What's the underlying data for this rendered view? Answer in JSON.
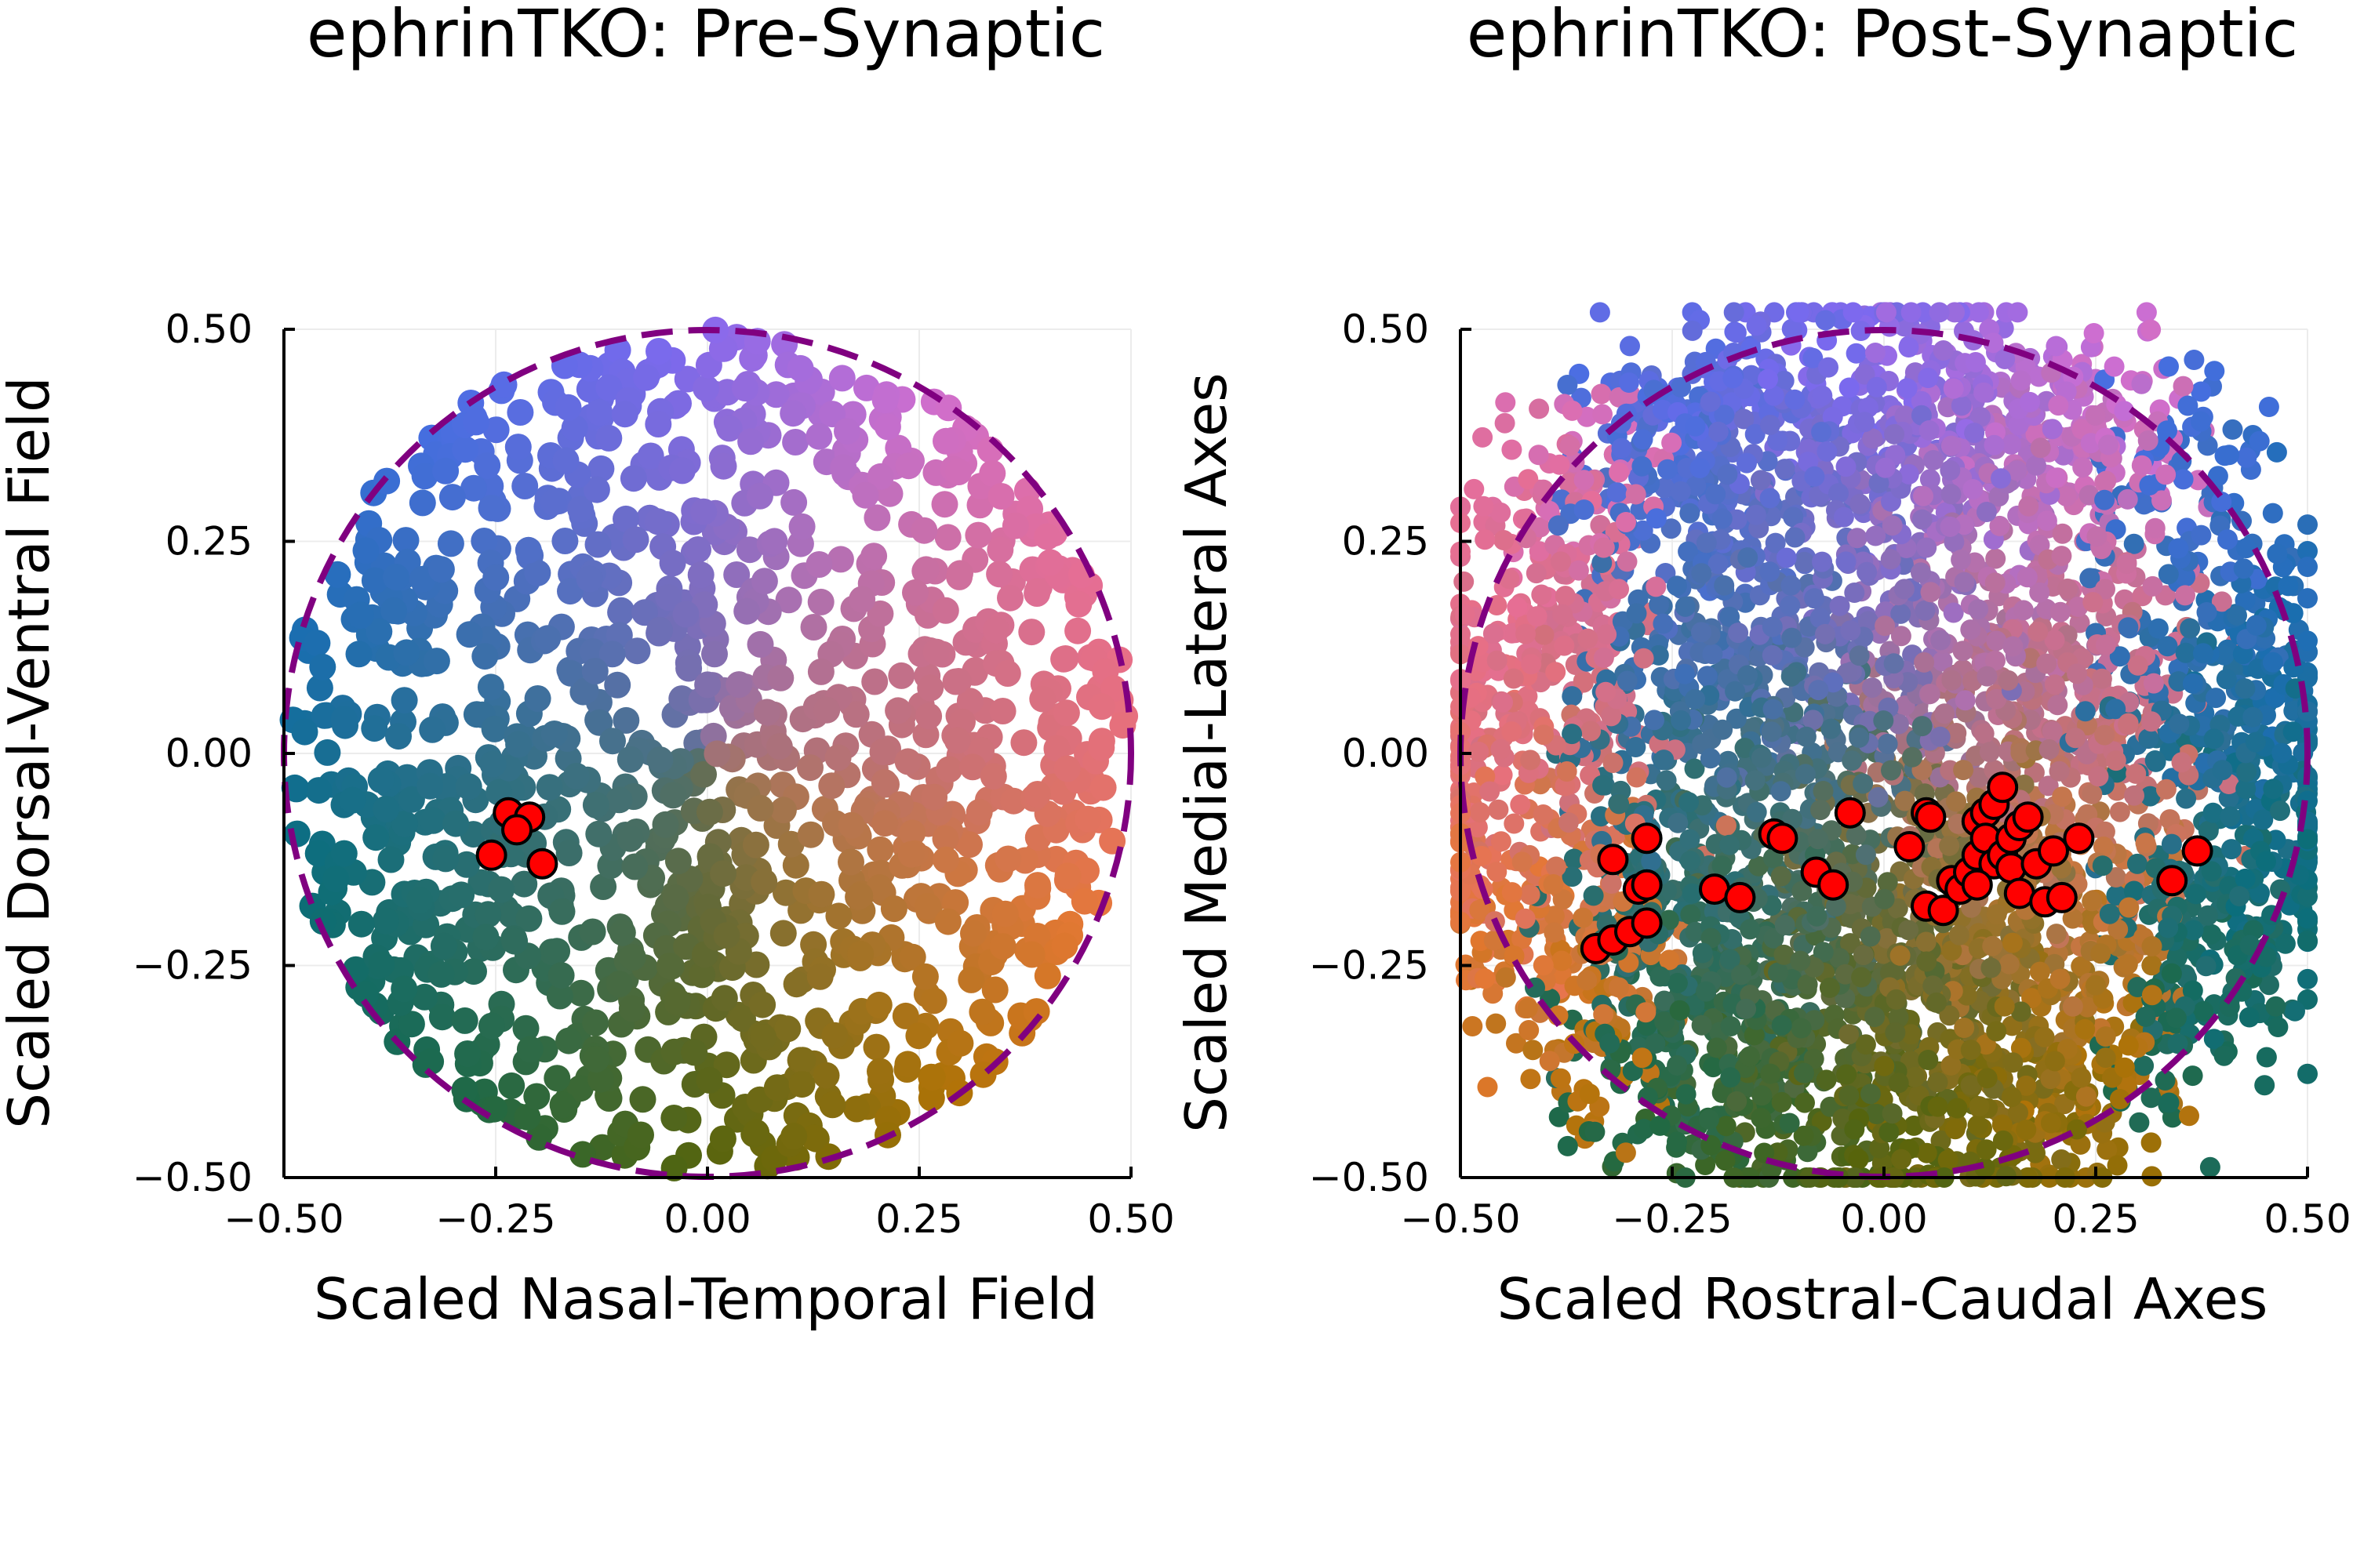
{
  "chart_data": [
    {
      "type": "scatter",
      "title": "ephrinTKO: Pre-Synaptic",
      "xlabel": "Scaled Nasal-Temporal Field",
      "ylabel": "Scaled Dorsal-Ventral Field",
      "xlim": [
        -0.5,
        0.5
      ],
      "ylim": [
        -0.5,
        0.5
      ],
      "xticks": [
        -0.5,
        -0.25,
        0.0,
        0.25,
        0.5
      ],
      "yticks": [
        -0.5,
        -0.25,
        0.0,
        0.25,
        0.5
      ],
      "xtick_labels": [
        "−0.50",
        "−0.25",
        "0.00",
        "0.25",
        "0.50"
      ],
      "ytick_labels": [
        "−0.50",
        "−0.25",
        "0.00",
        "0.25",
        "0.50"
      ],
      "grid": true,
      "legend": "none",
      "guide_circle": {
        "center": [
          0,
          0
        ],
        "radius": 0.5,
        "color": "#800080",
        "style": "dashed"
      },
      "background_points": {
        "count": 1200,
        "coloring": "color wheel by angle",
        "distribution": "uniform within unit-radius-0.5 disk"
      },
      "highlight_color": "#ff0000",
      "highlight_points": [
        {
          "x": -0.235,
          "y": -0.07
        },
        {
          "x": -0.21,
          "y": -0.075
        },
        {
          "x": -0.225,
          "y": -0.09
        },
        {
          "x": -0.255,
          "y": -0.12
        },
        {
          "x": -0.195,
          "y": -0.13
        }
      ]
    },
    {
      "type": "scatter",
      "title": "ephrinTKO: Post-Synaptic",
      "xlabel": "Scaled Rostral-Caudal Axes",
      "ylabel": "Scaled Medial-Lateral Axes",
      "xlim": [
        -0.5,
        0.5
      ],
      "ylim": [
        -0.5,
        0.5
      ],
      "xticks": [
        -0.5,
        -0.25,
        0.0,
        0.25,
        0.5
      ],
      "yticks": [
        -0.5,
        -0.25,
        0.0,
        0.25,
        0.5
      ],
      "xtick_labels": [
        "−0.50",
        "−0.25",
        "0.00",
        "0.25",
        "0.50"
      ],
      "ytick_labels": [
        "−0.50",
        "−0.25",
        "0.00",
        "0.25",
        "0.50"
      ],
      "grid": true,
      "legend": "none",
      "guide_circle": {
        "center": [
          0,
          0
        ],
        "radius": 0.5,
        "color": "#800080",
        "style": "dashed"
      },
      "background_points": {
        "count": 4200,
        "coloring": "color wheel by pre-synaptic angle",
        "distribution": "dense, overlapping, slightly beyond circle"
      },
      "highlight_color": "#ff0000",
      "highlight_points": [
        {
          "x": -0.34,
          "y": -0.23
        },
        {
          "x": -0.32,
          "y": -0.22
        },
        {
          "x": -0.3,
          "y": -0.21
        },
        {
          "x": -0.28,
          "y": -0.2
        },
        {
          "x": -0.29,
          "y": -0.16
        },
        {
          "x": -0.28,
          "y": -0.155
        },
        {
          "x": -0.32,
          "y": -0.125
        },
        {
          "x": -0.28,
          "y": -0.1
        },
        {
          "x": -0.2,
          "y": -0.16
        },
        {
          "x": -0.17,
          "y": -0.17
        },
        {
          "x": -0.13,
          "y": -0.095
        },
        {
          "x": -0.12,
          "y": -0.1
        },
        {
          "x": -0.08,
          "y": -0.14
        },
        {
          "x": -0.06,
          "y": -0.155
        },
        {
          "x": -0.04,
          "y": -0.07
        },
        {
          "x": 0.03,
          "y": -0.11
        },
        {
          "x": 0.05,
          "y": -0.07
        },
        {
          "x": 0.055,
          "y": -0.075
        },
        {
          "x": 0.05,
          "y": -0.18
        },
        {
          "x": 0.07,
          "y": -0.185
        },
        {
          "x": 0.08,
          "y": -0.15
        },
        {
          "x": 0.09,
          "y": -0.16
        },
        {
          "x": 0.1,
          "y": -0.14
        },
        {
          "x": 0.11,
          "y": -0.12
        },
        {
          "x": 0.11,
          "y": -0.08
        },
        {
          "x": 0.12,
          "y": -0.07
        },
        {
          "x": 0.13,
          "y": -0.06
        },
        {
          "x": 0.14,
          "y": -0.04
        },
        {
          "x": 0.12,
          "y": -0.1
        },
        {
          "x": 0.13,
          "y": -0.13
        },
        {
          "x": 0.14,
          "y": -0.12
        },
        {
          "x": 0.15,
          "y": -0.1
        },
        {
          "x": 0.16,
          "y": -0.085
        },
        {
          "x": 0.17,
          "y": -0.075
        },
        {
          "x": 0.15,
          "y": -0.135
        },
        {
          "x": 0.16,
          "y": -0.165
        },
        {
          "x": 0.18,
          "y": -0.13
        },
        {
          "x": 0.2,
          "y": -0.115
        },
        {
          "x": 0.19,
          "y": -0.175
        },
        {
          "x": 0.21,
          "y": -0.17
        },
        {
          "x": 0.23,
          "y": -0.1
        },
        {
          "x": 0.11,
          "y": -0.155
        },
        {
          "x": 0.34,
          "y": -0.15
        },
        {
          "x": 0.37,
          "y": -0.115
        }
      ]
    }
  ]
}
